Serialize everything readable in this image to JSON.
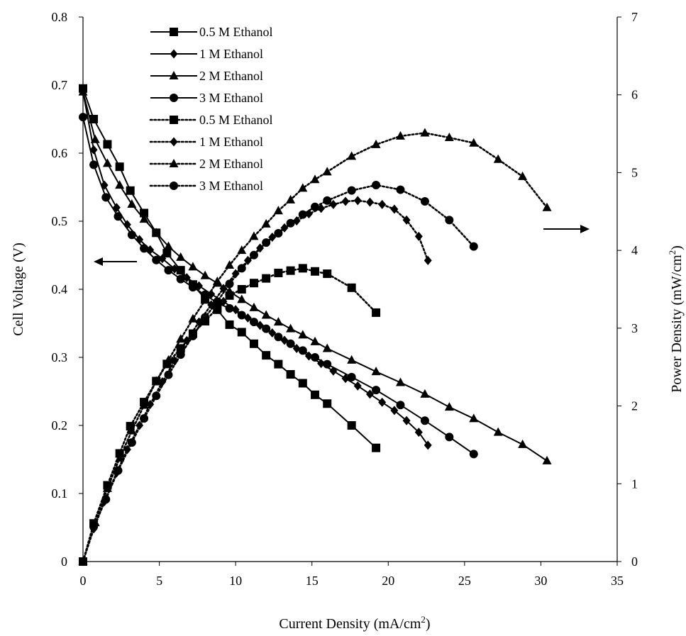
{
  "chart_data": {
    "type": "line",
    "xlabel": "Current Density (mA/cm",
    "xlabel_sup": "2",
    "xlabel_end": ")",
    "ylabel_left": "Cell Voltage (V)",
    "ylabel_right": "Power Density  (mW/cm",
    "ylabel_right_sup": "2",
    "ylabel_right_end": ")",
    "xlim": [
      0,
      35
    ],
    "ylim_left": [
      0,
      0.8
    ],
    "ylim_right": [
      0,
      7
    ],
    "x_ticks": [
      "0",
      "5",
      "10",
      "15",
      "20",
      "25",
      "30",
      "35"
    ],
    "y_left_ticks": [
      "0",
      "0.1",
      "0.2",
      "0.3",
      "0.4",
      "0.5",
      "0.6",
      "0.7",
      "0.8"
    ],
    "y_right_ticks": [
      "0",
      "1",
      "2",
      "3",
      "4",
      "5",
      "6",
      "7"
    ],
    "grid": false,
    "legend_position": "top-left",
    "marker_colors": "#000000",
    "series": [
      {
        "name": "0.5 M Ethanol",
        "axis": "left",
        "style": "solid",
        "marker": "square",
        "x": [
          0,
          0.7,
          1.6,
          2.4,
          3.1,
          4.0,
          4.8,
          5.5,
          6.4,
          7.2,
          8.0,
          8.8,
          9.6,
          10.4,
          11.2,
          12.0,
          12.8,
          13.6,
          14.4,
          15.2,
          16.0,
          17.6,
          19.2
        ],
        "values": [
          0.695,
          0.65,
          0.613,
          0.58,
          0.545,
          0.512,
          0.483,
          0.453,
          0.428,
          0.407,
          0.386,
          0.37,
          0.348,
          0.337,
          0.32,
          0.303,
          0.29,
          0.275,
          0.262,
          0.245,
          0.232,
          0.2,
          0.167
        ]
      },
      {
        "name": "1 M Ethanol",
        "axis": "left",
        "style": "solid",
        "marker": "diamond",
        "x": [
          0,
          0.7,
          1.4,
          2.2,
          2.9,
          3.7,
          4.4,
          5.2,
          6.0,
          6.8,
          7.6,
          8.4,
          9.2,
          10.0,
          10.8,
          11.6,
          12.4,
          13.2,
          14.0,
          14.8,
          15.6,
          16.4,
          17.2,
          18.0,
          18.8,
          19.6,
          20.4,
          21.2,
          22.0,
          22.6
        ],
        "values": [
          0.69,
          0.605,
          0.553,
          0.52,
          0.495,
          0.473,
          0.458,
          0.445,
          0.43,
          0.417,
          0.405,
          0.393,
          0.382,
          0.37,
          0.358,
          0.347,
          0.336,
          0.325,
          0.313,
          0.302,
          0.291,
          0.28,
          0.269,
          0.258,
          0.246,
          0.234,
          0.222,
          0.207,
          0.19,
          0.171
        ]
      },
      {
        "name": "2 M Ethanol",
        "axis": "left",
        "style": "solid",
        "marker": "triangle",
        "x": [
          0,
          0.8,
          1.6,
          2.4,
          3.2,
          4.0,
          4.8,
          5.6,
          6.4,
          7.2,
          8.0,
          8.8,
          9.6,
          10.4,
          11.2,
          12.0,
          12.8,
          13.6,
          14.4,
          15.2,
          16.0,
          17.6,
          19.2,
          20.8,
          22.4,
          24.0,
          25.6,
          27.2,
          28.8,
          30.4
        ],
        "values": [
          0.69,
          0.62,
          0.585,
          0.553,
          0.525,
          0.503,
          0.483,
          0.463,
          0.447,
          0.433,
          0.42,
          0.409,
          0.397,
          0.385,
          0.373,
          0.362,
          0.352,
          0.342,
          0.333,
          0.323,
          0.313,
          0.296,
          0.279,
          0.263,
          0.246,
          0.227,
          0.21,
          0.19,
          0.172,
          0.148
        ]
      },
      {
        "name": "3 M Ethanol",
        "axis": "left",
        "style": "solid",
        "marker": "circle",
        "x": [
          0,
          0.7,
          1.5,
          2.3,
          3.2,
          4.0,
          4.8,
          5.6,
          6.4,
          7.2,
          8.0,
          8.8,
          9.6,
          10.4,
          11.2,
          12.0,
          12.8,
          13.6,
          14.4,
          15.2,
          16.0,
          17.6,
          19.2,
          20.8,
          22.4,
          24.0,
          25.6
        ],
        "values": [
          0.653,
          0.583,
          0.535,
          0.507,
          0.48,
          0.46,
          0.443,
          0.428,
          0.415,
          0.403,
          0.392,
          0.38,
          0.372,
          0.362,
          0.352,
          0.342,
          0.33,
          0.32,
          0.31,
          0.3,
          0.29,
          0.271,
          0.252,
          0.23,
          0.207,
          0.183,
          0.158
        ]
      },
      {
        "name": "0.5 M Ethanol",
        "axis": "right",
        "style": "dotted",
        "marker": "square",
        "x": [
          0,
          0.7,
          1.6,
          2.4,
          3.1,
          4.0,
          4.8,
          5.5,
          6.4,
          7.2,
          8.0,
          8.8,
          9.6,
          10.4,
          11.2,
          12.0,
          12.8,
          13.6,
          14.4,
          15.2,
          16.0,
          17.6,
          19.2
        ],
        "values": [
          0,
          0.49,
          0.98,
          1.39,
          1.74,
          2.05,
          2.32,
          2.54,
          2.74,
          2.93,
          3.09,
          3.26,
          3.42,
          3.5,
          3.58,
          3.64,
          3.71,
          3.74,
          3.77,
          3.73,
          3.7,
          3.52,
          3.2
        ]
      },
      {
        "name": "1 M Ethanol",
        "axis": "right",
        "style": "dotted",
        "marker": "diamond",
        "x": [
          0,
          0.7,
          1.4,
          2.2,
          2.9,
          3.7,
          4.4,
          5.2,
          6.0,
          6.8,
          7.6,
          8.4,
          9.2,
          10.0,
          10.8,
          11.6,
          12.4,
          13.2,
          14.0,
          14.8,
          15.6,
          16.4,
          17.2,
          18.0,
          18.8,
          19.6,
          20.4,
          21.2,
          22.0,
          22.6
        ],
        "values": [
          0,
          0.42,
          0.77,
          1.14,
          1.44,
          1.75,
          2.02,
          2.31,
          2.58,
          2.84,
          3.08,
          3.3,
          3.51,
          3.7,
          3.87,
          4.03,
          4.17,
          4.29,
          4.38,
          4.47,
          4.54,
          4.59,
          4.63,
          4.64,
          4.62,
          4.59,
          4.53,
          4.39,
          4.18,
          3.87
        ]
      },
      {
        "name": "2 M Ethanol",
        "axis": "right",
        "style": "dotted",
        "marker": "triangle",
        "x": [
          0,
          0.8,
          1.6,
          2.4,
          3.2,
          4.0,
          4.8,
          5.6,
          6.4,
          7.2,
          8.0,
          8.8,
          9.6,
          10.4,
          11.2,
          12.0,
          12.8,
          13.6,
          14.4,
          15.2,
          16.0,
          17.6,
          19.2,
          20.8,
          22.4,
          24.0,
          25.6,
          27.2,
          28.8,
          30.4
        ],
        "values": [
          0,
          0.5,
          0.94,
          1.33,
          1.68,
          2.01,
          2.32,
          2.59,
          2.86,
          3.12,
          3.36,
          3.6,
          3.81,
          4.0,
          4.18,
          4.34,
          4.51,
          4.65,
          4.8,
          4.91,
          5.01,
          5.21,
          5.36,
          5.47,
          5.51,
          5.45,
          5.38,
          5.17,
          4.95,
          4.55
        ]
      },
      {
        "name": "3 M Ethanol",
        "axis": "right",
        "style": "dotted",
        "marker": "circle",
        "x": [
          0,
          0.7,
          1.5,
          2.3,
          3.2,
          4.0,
          4.8,
          5.6,
          6.4,
          7.2,
          8.0,
          8.8,
          9.6,
          10.4,
          11.2,
          12.0,
          12.8,
          13.6,
          14.4,
          15.2,
          16.0,
          17.6,
          19.2,
          20.8,
          22.4,
          24.0,
          25.6
        ],
        "values": [
          0,
          0.45,
          0.8,
          1.17,
          1.53,
          1.84,
          2.13,
          2.4,
          2.66,
          2.9,
          3.14,
          3.34,
          3.57,
          3.77,
          3.94,
          4.1,
          4.22,
          4.35,
          4.46,
          4.56,
          4.64,
          4.77,
          4.84,
          4.78,
          4.63,
          4.39,
          4.05
        ]
      }
    ]
  }
}
